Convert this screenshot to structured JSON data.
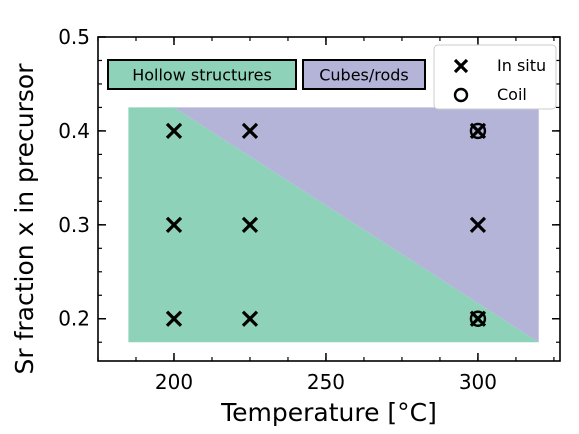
{
  "chart_data": {
    "type": "scatter",
    "xlabel": "Temperature  [°C]",
    "ylabel": "Sr fraction x in precursor",
    "xlim": [
      175,
      327
    ],
    "ylim": [
      0.155,
      0.5
    ],
    "xticks": [
      200,
      250,
      300
    ],
    "xtick_labels": [
      "200",
      "250",
      "300"
    ],
    "yticks": [
      0.2,
      0.3,
      0.4,
      0.5
    ],
    "ytick_labels": [
      "0.2",
      "0.3",
      "0.4",
      "0.5"
    ],
    "grid": false,
    "legend_position": "top-right",
    "regions": [
      {
        "label": "Hollow structures",
        "color": "#8dd2b9",
        "polygon": [
          [
            185,
            0.175
          ],
          [
            185,
            0.425
          ],
          [
            200,
            0.425
          ],
          [
            320,
            0.175
          ]
        ]
      },
      {
        "label": "Cubes/rods",
        "color": "#b4b4d8",
        "polygon": [
          [
            200,
            0.425
          ],
          [
            320,
            0.425
          ],
          [
            320,
            0.175
          ]
        ]
      }
    ],
    "series": [
      {
        "name": "In situ",
        "marker": "x",
        "points": [
          [
            200,
            0.4
          ],
          [
            225,
            0.4
          ],
          [
            300,
            0.4
          ],
          [
            200,
            0.3
          ],
          [
            225,
            0.3
          ],
          [
            300,
            0.3
          ],
          [
            200,
            0.2
          ],
          [
            225,
            0.2
          ],
          [
            300,
            0.2
          ]
        ]
      },
      {
        "name": "Coil",
        "marker": "o",
        "points": [
          [
            300,
            0.4
          ],
          [
            300,
            0.2
          ]
        ]
      }
    ]
  }
}
